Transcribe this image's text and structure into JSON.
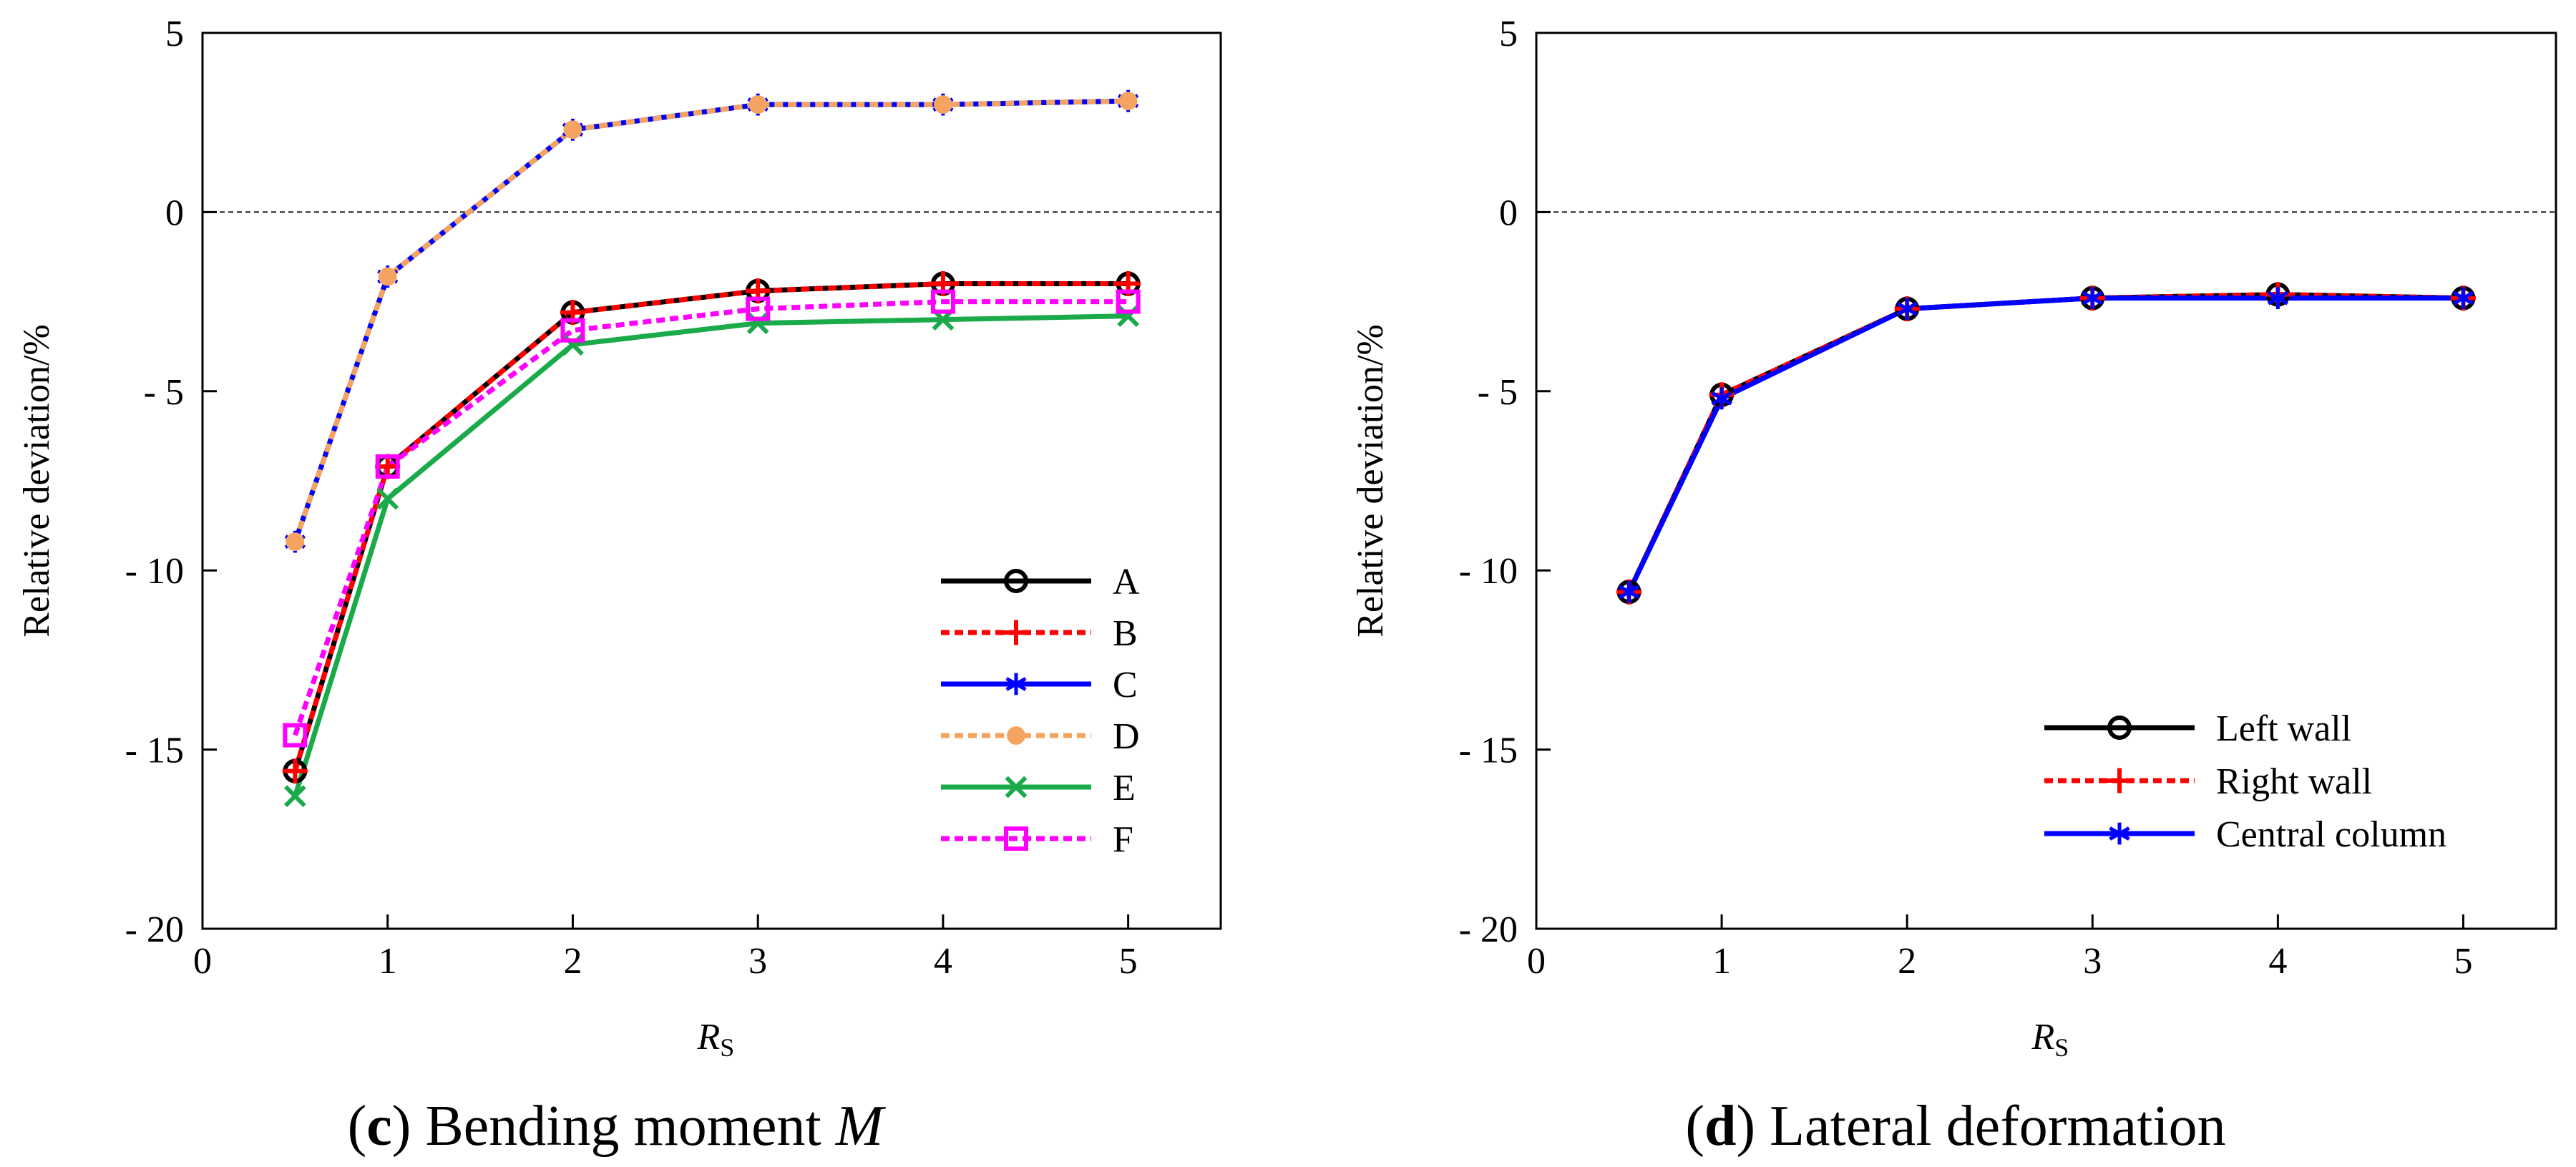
{
  "chart_data": [
    {
      "type": "line",
      "panel": "c",
      "caption": {
        "letter": "(c)",
        "text": " Bending moment ",
        "symbol": "M"
      },
      "xlabel": {
        "main": "R",
        "sub": "S"
      },
      "ylabel": "Relative deviation/%",
      "xlim": [
        0,
        5.5
      ],
      "ylim": [
        -20,
        5
      ],
      "xticks": [
        0,
        1,
        2,
        3,
        4,
        5
      ],
      "xtick_labels": [
        "0",
        "1",
        "2",
        "3",
        "4",
        "5"
      ],
      "yticks": [
        5,
        0,
        -5,
        -10,
        -15,
        -20
      ],
      "ytick_labels": [
        "5",
        "0",
        "- 5",
        "- 10",
        "- 15",
        "- 20"
      ],
      "zero_line": true,
      "legend_position": "bottom-right",
      "x": [
        0.5,
        1,
        2,
        3,
        4,
        5
      ],
      "series": [
        {
          "name": "A",
          "color": "#000000",
          "dash": "solid",
          "marker": "circle",
          "values": [
            -15.6,
            -7.1,
            -2.8,
            -2.2,
            -2.0,
            -2.0
          ]
        },
        {
          "name": "B",
          "color": "#ff0000",
          "dash": "dotted",
          "marker": "plus",
          "values": [
            -15.6,
            -7.1,
            -2.8,
            -2.2,
            -2.0,
            -2.0
          ]
        },
        {
          "name": "C",
          "color": "#0000ff",
          "dash": "solid",
          "marker": "asterisk",
          "values": [
            -9.2,
            -1.8,
            2.3,
            3.0,
            3.0,
            3.1
          ]
        },
        {
          "name": "D",
          "color": "#f4a460",
          "dash": "dotted",
          "marker": "filled-circle",
          "values": [
            -9.2,
            -1.8,
            2.3,
            3.0,
            3.0,
            3.1
          ]
        },
        {
          "name": "E",
          "color": "#1aaa4a",
          "dash": "solid",
          "marker": "x",
          "values": [
            -16.3,
            -8.0,
            -3.7,
            -3.1,
            -3.0,
            -2.9
          ]
        },
        {
          "name": "F",
          "color": "#ff00ff",
          "dash": "dotted",
          "marker": "square",
          "values": [
            -14.6,
            -7.1,
            -3.3,
            -2.7,
            -2.5,
            -2.5
          ]
        }
      ]
    },
    {
      "type": "line",
      "panel": "d",
      "caption": {
        "letter": "(d)",
        "text": " Lateral deformation"
      },
      "xlabel": {
        "main": "R",
        "sub": "S"
      },
      "ylabel": "Relative deviation/%",
      "xlim": [
        0,
        5.5
      ],
      "ylim": [
        -20,
        5
      ],
      "xticks": [
        0,
        1,
        2,
        3,
        4,
        5
      ],
      "xtick_labels": [
        "0",
        "1",
        "2",
        "3",
        "4",
        "5"
      ],
      "yticks": [
        5,
        0,
        -5,
        -10,
        -15,
        -20
      ],
      "ytick_labels": [
        "5",
        "0",
        "- 5",
        "- 10",
        "- 15",
        "- 20"
      ],
      "zero_line": true,
      "legend_position": "bottom-right",
      "x": [
        0.5,
        1,
        2,
        3,
        4,
        5
      ],
      "series": [
        {
          "name": "Left wall",
          "color": "#000000",
          "dash": "solid",
          "marker": "circle",
          "values": [
            -10.6,
            -5.1,
            -2.7,
            -2.4,
            -2.3,
            -2.4
          ]
        },
        {
          "name": "Right wall",
          "color": "#ff0000",
          "dash": "dotted",
          "marker": "plus",
          "values": [
            -10.6,
            -5.1,
            -2.7,
            -2.4,
            -2.3,
            -2.4
          ]
        },
        {
          "name": "Central column",
          "color": "#0000ff",
          "dash": "solid",
          "marker": "asterisk",
          "values": [
            -10.6,
            -5.2,
            -2.7,
            -2.4,
            -2.4,
            -2.4
          ]
        }
      ]
    }
  ]
}
